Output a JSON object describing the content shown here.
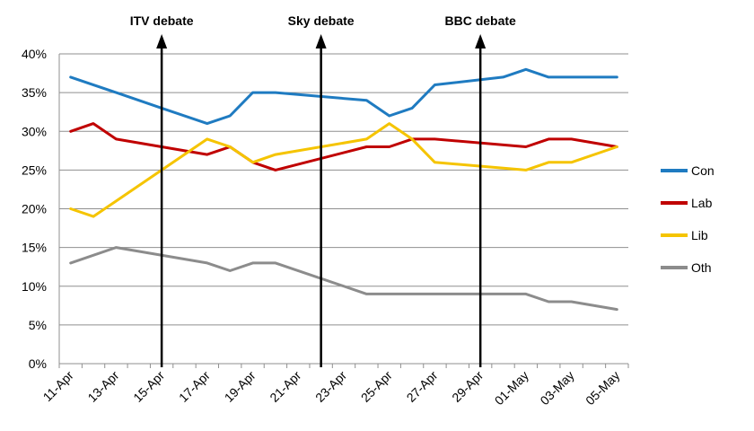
{
  "chart_data": {
    "type": "line",
    "title": "",
    "xlabel": "",
    "ylabel": "",
    "x_start": "11-Apr",
    "x_tick_labels": [
      "11-Apr",
      "13-Apr",
      "15-Apr",
      "17-Apr",
      "19-Apr",
      "21-Apr",
      "23-Apr",
      "25-Apr",
      "27-Apr",
      "29-Apr",
      "01-May",
      "03-May",
      "05-May"
    ],
    "y_tick_labels": [
      "0%",
      "5%",
      "10%",
      "15%",
      "20%",
      "25%",
      "30%",
      "35%",
      "40%"
    ],
    "ylim": [
      0,
      40
    ],
    "grid": "horizontal",
    "legend_position": "right",
    "series": [
      {
        "name": "Con",
        "color": "#1f7bc1",
        "points": [
          [
            "11-Apr",
            37
          ],
          [
            "13-Apr",
            35
          ],
          [
            "15-Apr",
            33
          ],
          [
            "17-Apr",
            31
          ],
          [
            "18-Apr",
            32
          ],
          [
            "19-Apr",
            35
          ],
          [
            "20-Apr",
            35
          ],
          [
            "24-Apr",
            34
          ],
          [
            "25-Apr",
            32
          ],
          [
            "26-Apr",
            33
          ],
          [
            "27-Apr",
            36
          ],
          [
            "30-Apr",
            37
          ],
          [
            "01-May",
            38
          ],
          [
            "02-May",
            37
          ],
          [
            "05-May",
            37
          ]
        ]
      },
      {
        "name": "Lab",
        "color": "#c00000",
        "points": [
          [
            "11-Apr",
            30
          ],
          [
            "12-Apr",
            31
          ],
          [
            "13-Apr",
            29
          ],
          [
            "17-Apr",
            27
          ],
          [
            "18-Apr",
            28
          ],
          [
            "19-Apr",
            26
          ],
          [
            "20-Apr",
            25
          ],
          [
            "24-Apr",
            28
          ],
          [
            "25-Apr",
            28
          ],
          [
            "26-Apr",
            29
          ],
          [
            "27-Apr",
            29
          ],
          [
            "01-May",
            28
          ],
          [
            "02-May",
            29
          ],
          [
            "03-May",
            29
          ],
          [
            "05-May",
            28
          ]
        ]
      },
      {
        "name": "Lib",
        "color": "#f5c400",
        "points": [
          [
            "11-Apr",
            20
          ],
          [
            "12-Apr",
            19
          ],
          [
            "13-Apr",
            21
          ],
          [
            "15-Apr",
            25
          ],
          [
            "17-Apr",
            29
          ],
          [
            "18-Apr",
            28
          ],
          [
            "19-Apr",
            26
          ],
          [
            "20-Apr",
            27
          ],
          [
            "24-Apr",
            29
          ],
          [
            "25-Apr",
            31
          ],
          [
            "26-Apr",
            29
          ],
          [
            "27-Apr",
            26
          ],
          [
            "01-May",
            25
          ],
          [
            "02-May",
            26
          ],
          [
            "03-May",
            26
          ],
          [
            "05-May",
            28
          ]
        ]
      },
      {
        "name": "Oth",
        "color": "#8c8c8c",
        "points": [
          [
            "11-Apr",
            13
          ],
          [
            "13-Apr",
            15
          ],
          [
            "17-Apr",
            13
          ],
          [
            "18-Apr",
            12
          ],
          [
            "19-Apr",
            13
          ],
          [
            "20-Apr",
            13
          ],
          [
            "24-Apr",
            9
          ],
          [
            "01-May",
            9
          ],
          [
            "02-May",
            8
          ],
          [
            "03-May",
            8
          ],
          [
            "05-May",
            7
          ]
        ]
      }
    ],
    "annotations": [
      {
        "label": "ITV debate",
        "x": "15-Apr"
      },
      {
        "label": "Sky debate",
        "x": "22-Apr"
      },
      {
        "label": "BBC debate",
        "x": "29-Apr"
      }
    ]
  }
}
